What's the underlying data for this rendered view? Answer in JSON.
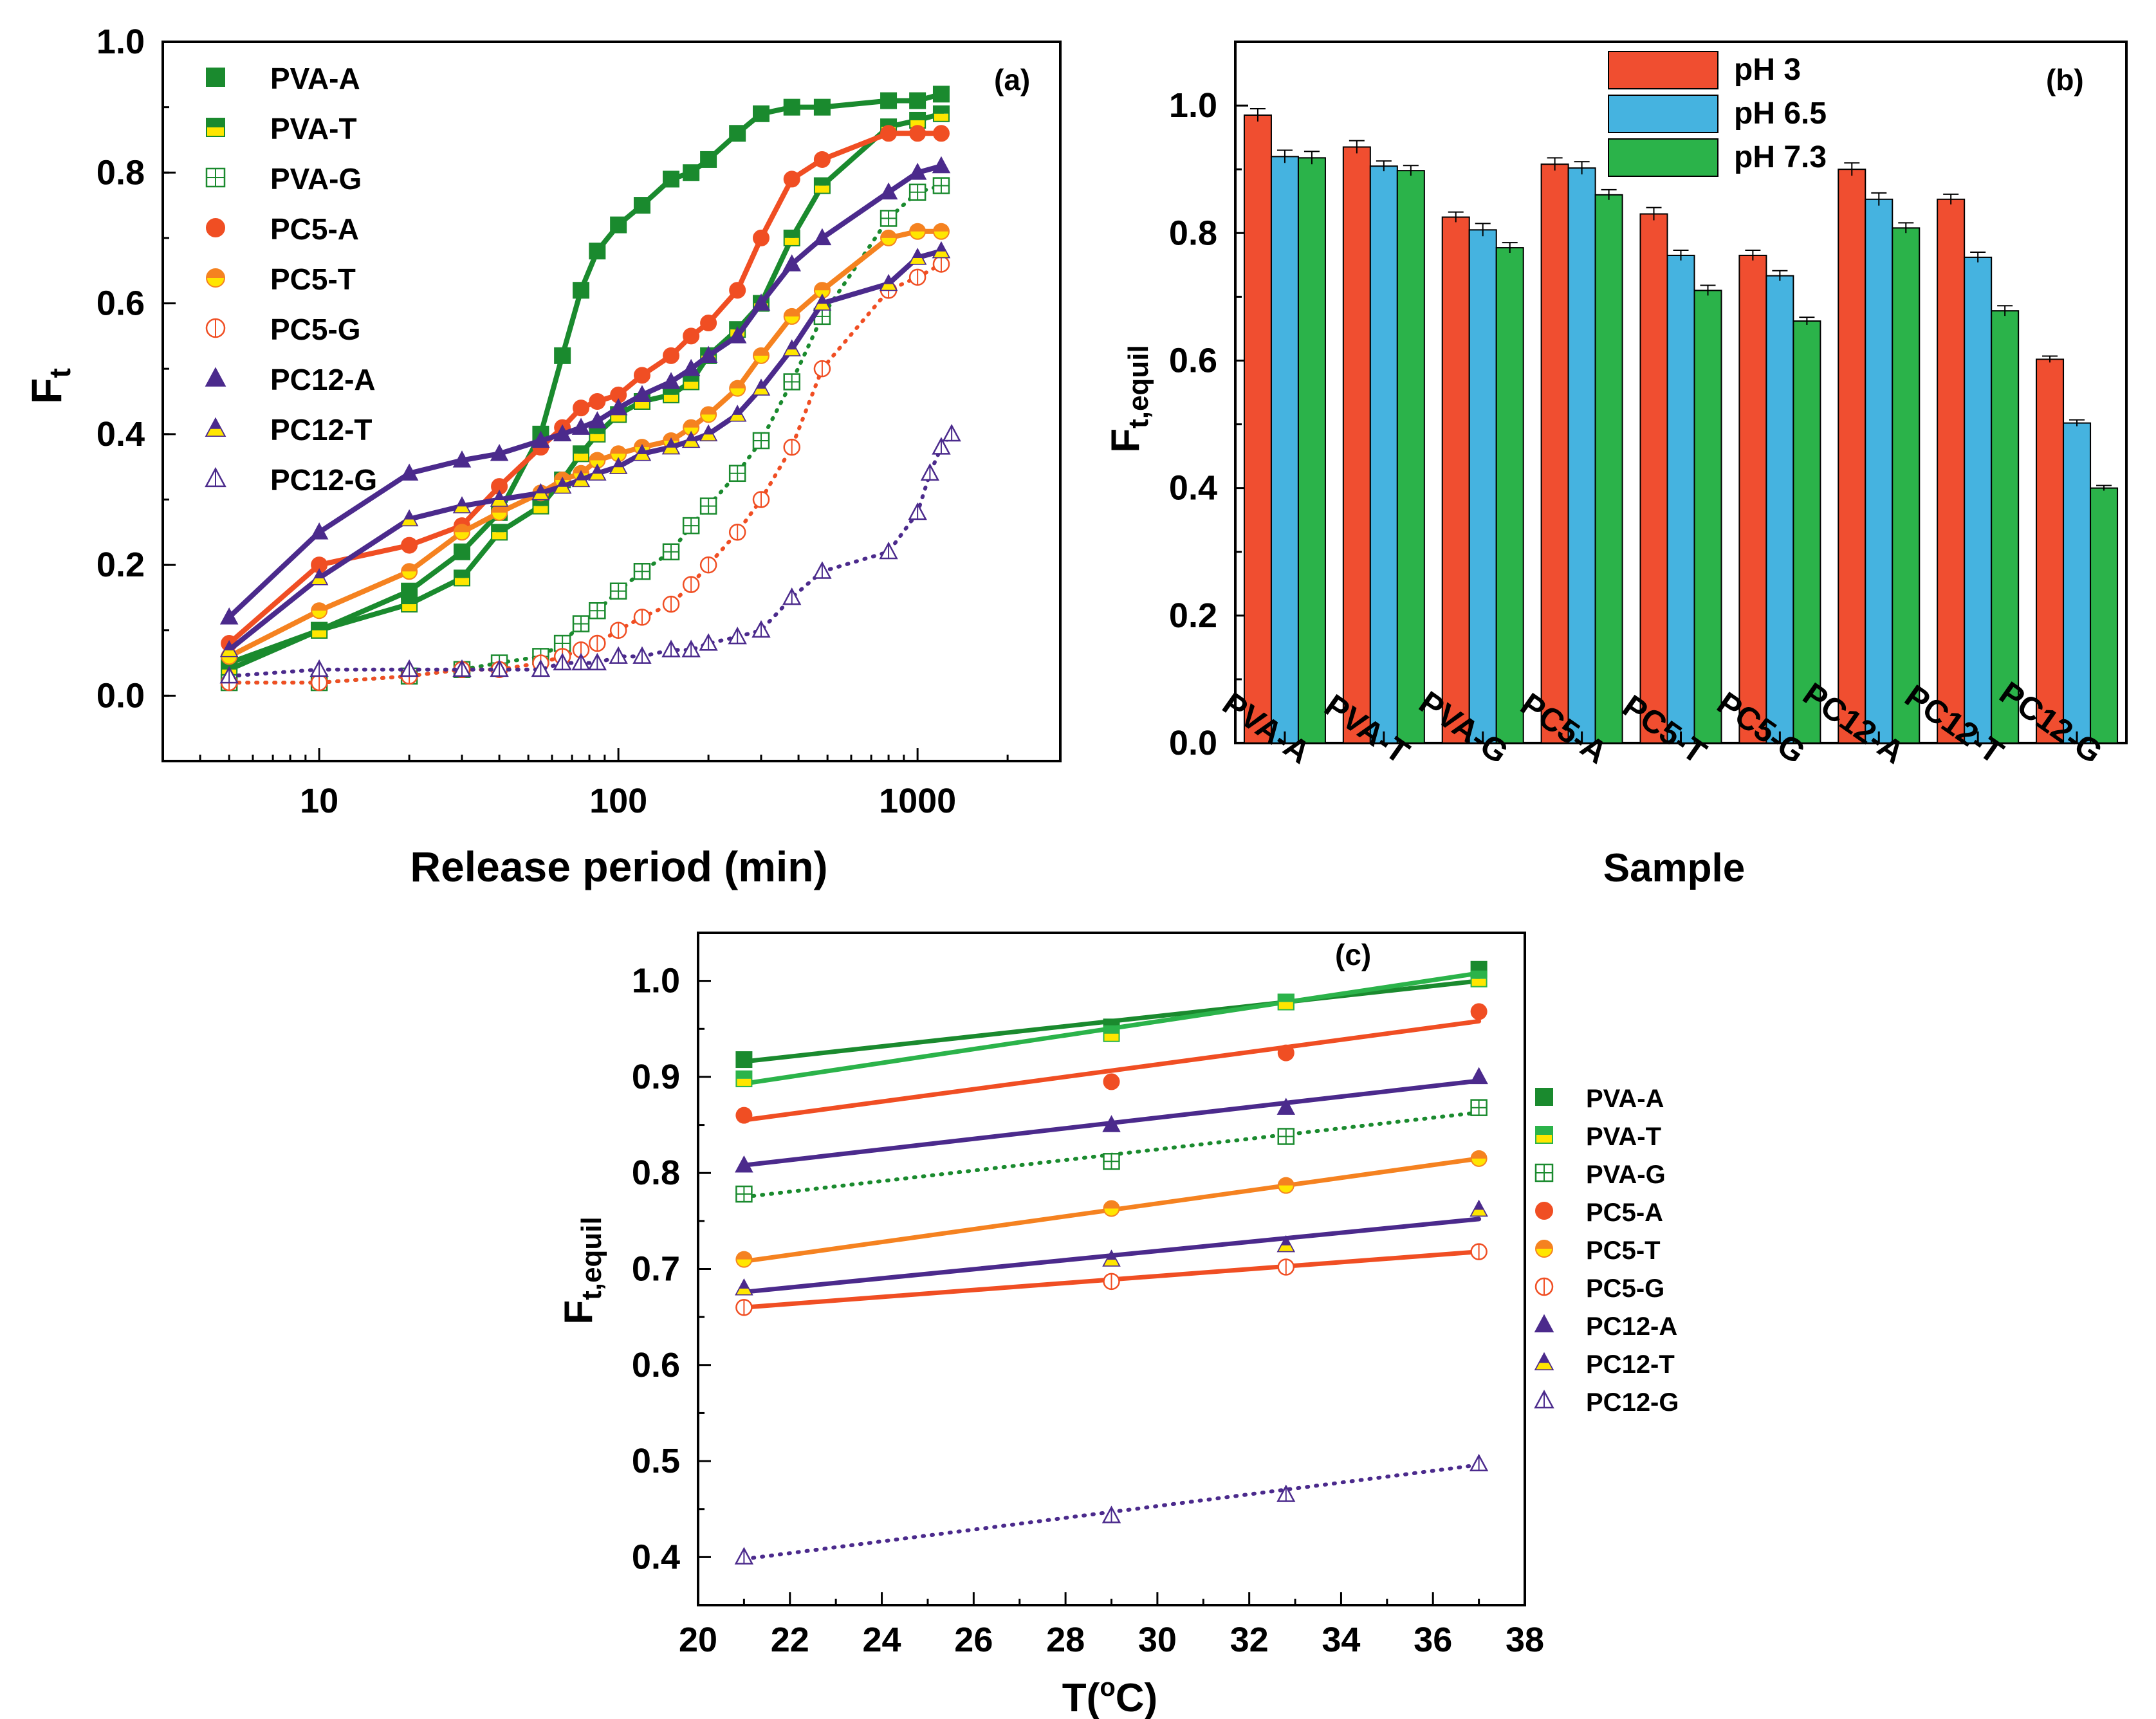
{
  "chart_data": [
    {
      "panel_label": "(a)",
      "type": "scatter",
      "xscale": "log",
      "xlabel": "Release period (min)",
      "ylabel_main": "F",
      "ylabel_sub": "t",
      "xlim": [
        3,
        3000
      ],
      "ylim": [
        -0.1,
        1.0
      ],
      "x_ticks": [
        10,
        100,
        1000
      ],
      "x_tick_labels": [
        "10",
        "100",
        "1000"
      ],
      "y_ticks": [
        0.0,
        0.2,
        0.4,
        0.6,
        0.8,
        1.0
      ],
      "y_tick_labels": [
        "0.0",
        "0.2",
        "0.4",
        "0.6",
        "0.8",
        "1.0"
      ],
      "legend_position": "top-left",
      "series": [
        {
          "name": "PVA-A",
          "color": "#1a8a2e",
          "marker": "square-filled",
          "line": "solid",
          "x": [
            5,
            10,
            20,
            30,
            40,
            55,
            65,
            75,
            85,
            100,
            120,
            150,
            175,
            200,
            250,
            300,
            380,
            480,
            800,
            1000,
            1200
          ],
          "y": [
            0.05,
            0.1,
            0.16,
            0.22,
            0.28,
            0.4,
            0.52,
            0.62,
            0.68,
            0.72,
            0.75,
            0.79,
            0.8,
            0.82,
            0.86,
            0.89,
            0.9,
            0.9,
            0.91,
            0.91,
            0.92
          ]
        },
        {
          "name": "PVA-T",
          "color": "#1a8a2e",
          "marker": "square-half",
          "line": "solid",
          "x": [
            5,
            10,
            20,
            30,
            40,
            55,
            65,
            75,
            85,
            100,
            120,
            150,
            175,
            200,
            250,
            300,
            380,
            480,
            800,
            1000,
            1200
          ],
          "y": [
            0.04,
            0.1,
            0.14,
            0.18,
            0.25,
            0.29,
            0.33,
            0.37,
            0.4,
            0.43,
            0.45,
            0.46,
            0.48,
            0.52,
            0.56,
            0.6,
            0.7,
            0.78,
            0.87,
            0.88,
            0.89
          ]
        },
        {
          "name": "PVA-G",
          "color": "#1a8a2e",
          "marker": "square-open",
          "line": "dotted",
          "x": [
            5,
            10,
            20,
            30,
            40,
            55,
            65,
            75,
            85,
            100,
            120,
            150,
            175,
            200,
            250,
            300,
            380,
            480,
            800,
            1000,
            1200
          ],
          "y": [
            0.02,
            0.02,
            0.03,
            0.04,
            0.05,
            0.06,
            0.08,
            0.11,
            0.13,
            0.16,
            0.19,
            0.22,
            0.26,
            0.29,
            0.34,
            0.39,
            0.48,
            0.58,
            0.73,
            0.77,
            0.78
          ]
        },
        {
          "name": "PC5-A",
          "color": "#f04e23",
          "marker": "circle-filled",
          "line": "solid",
          "x": [
            5,
            10,
            20,
            30,
            40,
            55,
            65,
            75,
            85,
            100,
            120,
            150,
            175,
            200,
            250,
            300,
            380,
            480,
            800,
            1000,
            1200
          ],
          "y": [
            0.08,
            0.2,
            0.23,
            0.26,
            0.32,
            0.38,
            0.41,
            0.44,
            0.45,
            0.46,
            0.49,
            0.52,
            0.55,
            0.57,
            0.62,
            0.7,
            0.79,
            0.82,
            0.86,
            0.86,
            0.86
          ]
        },
        {
          "name": "PC5-T",
          "color": "#f58220",
          "marker": "circle-half",
          "line": "solid",
          "x": [
            5,
            10,
            20,
            30,
            40,
            55,
            65,
            75,
            85,
            100,
            120,
            150,
            175,
            200,
            250,
            300,
            380,
            480,
            800,
            1000,
            1200
          ],
          "y": [
            0.06,
            0.13,
            0.19,
            0.25,
            0.28,
            0.31,
            0.33,
            0.34,
            0.36,
            0.37,
            0.38,
            0.39,
            0.41,
            0.43,
            0.47,
            0.52,
            0.58,
            0.62,
            0.7,
            0.71,
            0.71
          ]
        },
        {
          "name": "PC5-G",
          "color": "#f04e23",
          "marker": "circle-open",
          "line": "dotted",
          "x": [
            5,
            10,
            20,
            30,
            40,
            55,
            65,
            75,
            85,
            100,
            120,
            150,
            175,
            200,
            250,
            300,
            380,
            480,
            800,
            1000,
            1200
          ],
          "y": [
            0.02,
            0.02,
            0.03,
            0.04,
            0.04,
            0.05,
            0.06,
            0.07,
            0.08,
            0.1,
            0.12,
            0.14,
            0.17,
            0.2,
            0.25,
            0.3,
            0.38,
            0.5,
            0.62,
            0.64,
            0.66
          ]
        },
        {
          "name": "PC12-A",
          "color": "#4b2a8c",
          "marker": "triangle-filled",
          "line": "solid",
          "x": [
            5,
            10,
            20,
            30,
            40,
            55,
            65,
            75,
            85,
            100,
            120,
            150,
            175,
            200,
            250,
            300,
            380,
            480,
            800,
            1000,
            1200
          ],
          "y": [
            0.12,
            0.25,
            0.34,
            0.36,
            0.37,
            0.39,
            0.4,
            0.41,
            0.42,
            0.44,
            0.46,
            0.48,
            0.5,
            0.52,
            0.55,
            0.6,
            0.66,
            0.7,
            0.77,
            0.8,
            0.81
          ]
        },
        {
          "name": "PC12-T",
          "color": "#4b2a8c",
          "marker": "triangle-half",
          "line": "solid",
          "x": [
            5,
            10,
            20,
            30,
            40,
            55,
            65,
            75,
            85,
            100,
            120,
            150,
            175,
            200,
            250,
            300,
            380,
            480,
            800,
            1000,
            1200
          ],
          "y": [
            0.07,
            0.18,
            0.27,
            0.29,
            0.3,
            0.31,
            0.32,
            0.33,
            0.34,
            0.35,
            0.37,
            0.38,
            0.39,
            0.4,
            0.43,
            0.47,
            0.53,
            0.6,
            0.63,
            0.67,
            0.68
          ]
        },
        {
          "name": "PC12-G",
          "color": "#4b2a8c",
          "marker": "triangle-open",
          "line": "dotted",
          "x": [
            5,
            10,
            20,
            30,
            40,
            55,
            65,
            75,
            85,
            100,
            120,
            150,
            175,
            200,
            250,
            300,
            380,
            480,
            800,
            1000,
            1100,
            1200,
            1300
          ],
          "y": [
            0.03,
            0.04,
            0.04,
            0.04,
            0.04,
            0.04,
            0.05,
            0.05,
            0.05,
            0.06,
            0.06,
            0.07,
            0.07,
            0.08,
            0.09,
            0.1,
            0.15,
            0.19,
            0.22,
            0.28,
            0.34,
            0.38,
            0.4
          ]
        }
      ]
    },
    {
      "panel_label": "(b)",
      "type": "bar",
      "xlabel": "Sample",
      "ylabel_main": "F",
      "ylabel_sub": "t,equil",
      "ylim": [
        0.0,
        1.1
      ],
      "y_ticks": [
        0.0,
        0.2,
        0.4,
        0.6,
        0.8,
        1.0
      ],
      "y_tick_labels": [
        "0.0",
        "0.2",
        "0.4",
        "0.6",
        "0.8",
        "1.0"
      ],
      "legend_position": "top-center",
      "categories": [
        "PVA-A",
        "PVA-T",
        "PVA-G",
        "PC5-A",
        "PC5-T",
        "PC5-G",
        "PC12-A",
        "PC12-T",
        "PC12-G"
      ],
      "series": [
        {
          "name": "pH 3",
          "color": "#f04e30",
          "values": [
            0.985,
            0.935,
            0.825,
            0.908,
            0.83,
            0.765,
            0.9,
            0.853,
            0.602
          ],
          "errors": [
            0.01,
            0.01,
            0.008,
            0.01,
            0.01,
            0.008,
            0.01,
            0.008,
            0.005
          ]
        },
        {
          "name": "pH 6.5",
          "color": "#45b3e0",
          "values": [
            0.92,
            0.905,
            0.805,
            0.902,
            0.765,
            0.733,
            0.853,
            0.762,
            0.502
          ],
          "errors": [
            0.01,
            0.008,
            0.01,
            0.01,
            0.008,
            0.008,
            0.01,
            0.008,
            0.005
          ]
        },
        {
          "name": "pH 7.3",
          "color": "#2bb34a",
          "values": [
            0.918,
            0.898,
            0.777,
            0.86,
            0.71,
            0.662,
            0.808,
            0.678,
            0.4
          ],
          "errors": [
            0.01,
            0.008,
            0.008,
            0.008,
            0.008,
            0.006,
            0.008,
            0.008,
            0.004
          ]
        }
      ]
    },
    {
      "panel_label": "(c)",
      "type": "scatter",
      "xlabel_main": "T(",
      "xlabel_sup": "o",
      "xlabel_end": "C)",
      "ylabel_main": "F",
      "ylabel_sub": "t,equil",
      "xlim": [
        20,
        38
      ],
      "ylim": [
        0.35,
        1.05
      ],
      "x_ticks": [
        20,
        22,
        24,
        26,
        28,
        30,
        32,
        34,
        36,
        38
      ],
      "x_tick_labels": [
        "20",
        "22",
        "24",
        "26",
        "28",
        "30",
        "32",
        "34",
        "36",
        "38"
      ],
      "y_ticks": [
        0.4,
        0.5,
        0.6,
        0.7,
        0.8,
        0.9,
        1.0
      ],
      "y_tick_labels": [
        "0.4",
        "0.5",
        "0.6",
        "0.7",
        "0.8",
        "0.9",
        "1.0"
      ],
      "legend_position": "outside-right",
      "series": [
        {
          "name": "PVA-A",
          "color": "#1a8a2e",
          "marker": "square-filled",
          "line": "solid",
          "x": [
            21,
            29,
            32.8,
            37
          ],
          "y": [
            0.918,
            0.952,
            0.978,
            1.012
          ],
          "fit": [
            0.916,
            1.0
          ]
        },
        {
          "name": "PVA-T",
          "color": "#2bb34a",
          "marker": "square-half",
          "line": "solid",
          "x": [
            21,
            29,
            32.8,
            37
          ],
          "y": [
            0.898,
            0.945,
            0.978,
            1.002
          ],
          "fit": [
            0.893,
            1.008
          ]
        },
        {
          "name": "PVA-G",
          "color": "#1a8a2e",
          "marker": "square-open",
          "line": "dotted",
          "x": [
            21,
            29,
            32.8,
            37
          ],
          "y": [
            0.778,
            0.812,
            0.838,
            0.868
          ],
          "fit": [
            0.775,
            0.863
          ]
        },
        {
          "name": "PC5-A",
          "color": "#f04e23",
          "marker": "circle-filled",
          "line": "solid",
          "x": [
            21,
            29,
            32.8,
            37
          ],
          "y": [
            0.86,
            0.895,
            0.925,
            0.968
          ],
          "fit": [
            0.855,
            0.958
          ]
        },
        {
          "name": "PC5-T",
          "color": "#f58220",
          "marker": "circle-half",
          "line": "solid",
          "x": [
            21,
            29,
            32.8,
            37
          ],
          "y": [
            0.71,
            0.763,
            0.787,
            0.815
          ],
          "fit": [
            0.708,
            0.815
          ]
        },
        {
          "name": "PC5-G",
          "color": "#f04e23",
          "marker": "circle-open",
          "line": "solid",
          "x": [
            21,
            29,
            32.8,
            37
          ],
          "y": [
            0.66,
            0.687,
            0.702,
            0.718
          ],
          "fit": [
            0.66,
            0.718
          ]
        },
        {
          "name": "PC12-A",
          "color": "#4b2a8c",
          "marker": "triangle-filled",
          "line": "solid",
          "x": [
            21,
            29,
            32.8,
            37
          ],
          "y": [
            0.808,
            0.85,
            0.868,
            0.9
          ],
          "fit": [
            0.808,
            0.896
          ]
        },
        {
          "name": "PC12-T",
          "color": "#4b2a8c",
          "marker": "triangle-half",
          "line": "solid",
          "x": [
            21,
            29,
            32.8,
            37
          ],
          "y": [
            0.68,
            0.71,
            0.725,
            0.762
          ],
          "fit": [
            0.676,
            0.752
          ]
        },
        {
          "name": "PC12-G",
          "color": "#4b2a8c",
          "marker": "triangle-open",
          "line": "dotted",
          "x": [
            21,
            29,
            32.8,
            37
          ],
          "y": [
            0.4,
            0.443,
            0.465,
            0.497
          ],
          "fit": [
            0.398,
            0.496
          ]
        }
      ]
    }
  ]
}
